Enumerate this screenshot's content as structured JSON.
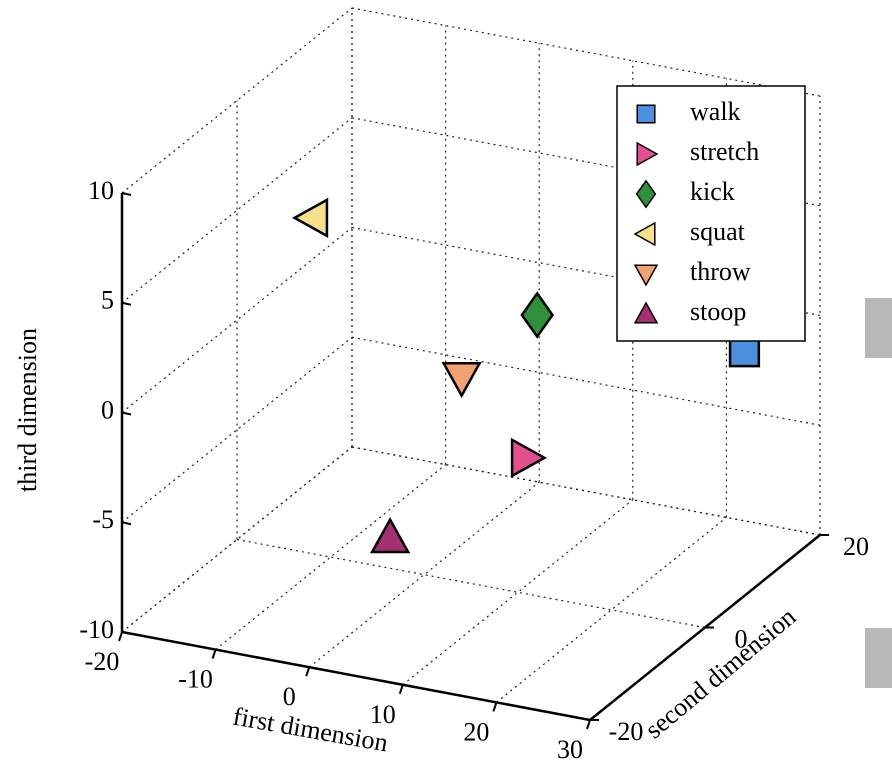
{
  "chart_data": {
    "type": "scatter3d",
    "xlabel": "first dimension",
    "ylabel": "second dimension",
    "zlabel": "third dimension",
    "xlim": [
      -20,
      30
    ],
    "xticks": [
      -20,
      -10,
      0,
      10,
      20,
      30
    ],
    "ylim": [
      -20,
      20
    ],
    "yticks": [
      -20,
      0,
      20
    ],
    "zlim": [
      -10,
      10
    ],
    "zticks": [
      -10,
      -5,
      0,
      5,
      10
    ],
    "grid": true,
    "legend": "upper right",
    "series": [
      {
        "name": "walk",
        "color": "#4a90dc",
        "marker": "square",
        "x": [
          25
        ],
        "y": [
          15
        ],
        "z": [
          -1
        ]
      },
      {
        "name": "stretch",
        "color": "#e2508e",
        "marker": "triangle-right",
        "x": [
          14
        ],
        "y": [
          -5
        ],
        "z": [
          -2.5
        ]
      },
      {
        "name": "kick",
        "color": "#2f8f3c",
        "marker": "diamond",
        "x": [
          9
        ],
        "y": [
          5
        ],
        "z": [
          1.5
        ]
      },
      {
        "name": "squat",
        "color": "#f6e08c",
        "marker": "triangle-left",
        "x": [
          -15
        ],
        "y": [
          5
        ],
        "z": [
          4
        ]
      },
      {
        "name": "throw",
        "color": "#f0a274",
        "marker": "triangle-down",
        "x": [
          4
        ],
        "y": [
          0
        ],
        "z": [
          -0.7
        ]
      },
      {
        "name": "stoop",
        "color": "#a33070",
        "marker": "triangle-up",
        "x": [
          2.5
        ],
        "y": [
          -10
        ],
        "z": [
          -6
        ]
      }
    ]
  }
}
